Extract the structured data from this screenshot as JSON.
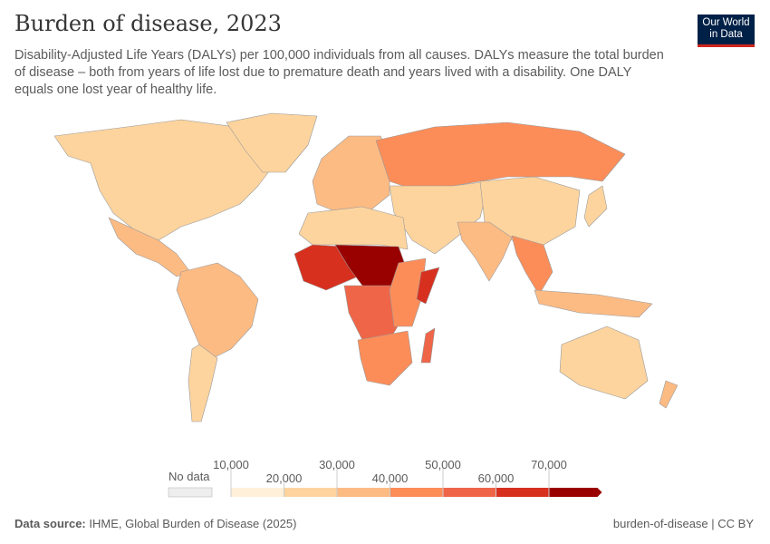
{
  "header": {
    "title": "Burden of disease, 2023",
    "subtitle": "Disability-Adjusted Life Years (DALYs) per 100,000 individuals from all causes. DALYs measure the total burden of disease – both from years of life lost due to premature death and years lived with a disability. One DALY equals one lost year of healthy life."
  },
  "logo": {
    "line1": "Our World",
    "line2": "in Data"
  },
  "legend": {
    "no_data": "No data",
    "ticks": [
      "10,000",
      "20,000",
      "30,000",
      "40,000",
      "50,000",
      "60,000",
      "70,000"
    ],
    "colors": [
      "#fef0d9",
      "#fdd49e",
      "#fdbb84",
      "#fc8d59",
      "#ef6548",
      "#d7301f",
      "#990000"
    ],
    "no_data_color": "#eeeeee"
  },
  "regions": [
    {
      "name": "north-america",
      "color": "#fdd49e"
    },
    {
      "name": "central-america",
      "color": "#fdbb84"
    },
    {
      "name": "south-america",
      "color": "#fdbb84"
    },
    {
      "name": "southern-cone",
      "color": "#fdd49e"
    },
    {
      "name": "greenland",
      "color": "#fdd49e"
    },
    {
      "name": "europe",
      "color": "#fdbb84"
    },
    {
      "name": "russia",
      "color": "#fc8d59"
    },
    {
      "name": "middle-east-central-asia",
      "color": "#fdd49e"
    },
    {
      "name": "china",
      "color": "#fdd49e"
    },
    {
      "name": "south-asia",
      "color": "#fdbb84"
    },
    {
      "name": "southeast-asia",
      "color": "#fc8d59"
    },
    {
      "name": "north-africa",
      "color": "#fdd49e"
    },
    {
      "name": "sahel",
      "color": "#990000"
    },
    {
      "name": "west-africa",
      "color": "#d7301f"
    },
    {
      "name": "central-africa",
      "color": "#ef6548"
    },
    {
      "name": "east-africa",
      "color": "#fc8d59"
    },
    {
      "name": "somalia",
      "color": "#d7301f"
    },
    {
      "name": "southern-africa",
      "color": "#fc8d59"
    },
    {
      "name": "madagascar",
      "color": "#ef6548"
    },
    {
      "name": "australia",
      "color": "#fdd49e"
    },
    {
      "name": "new-zealand",
      "color": "#fdbb84"
    },
    {
      "name": "japan",
      "color": "#fdd49e"
    },
    {
      "name": "indonesia",
      "color": "#fdbb84"
    }
  ],
  "footer": {
    "source_label": "Data source:",
    "source": "IHME, Global Burden of Disease (2025)",
    "slug": "burden-of-disease | CC BY"
  }
}
